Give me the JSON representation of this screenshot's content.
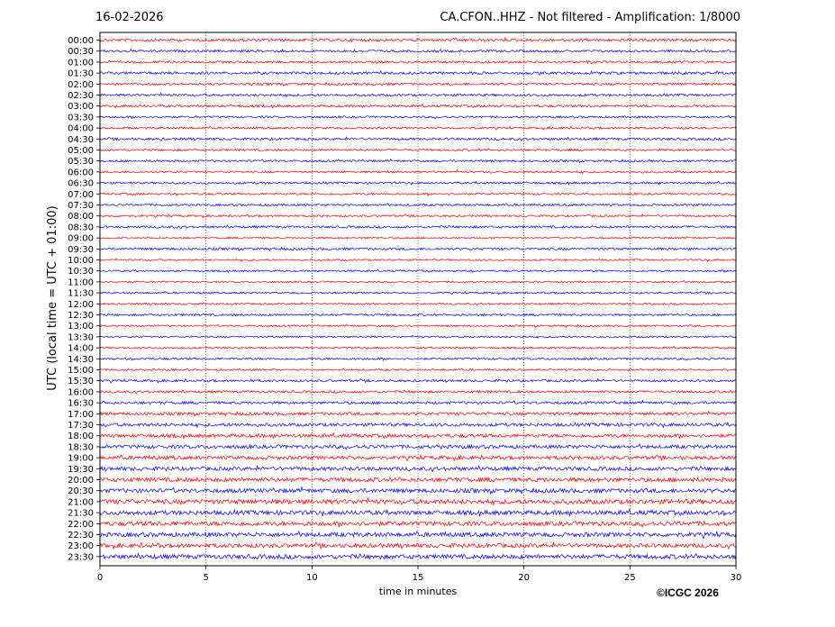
{
  "header": {
    "date": "16-02-2026",
    "station_title": "CA.CFON..HHZ - Not filtered - Amplification: 1/8000"
  },
  "footer": {
    "copyright": "©ICGC 2026"
  },
  "chart_data": {
    "type": "line",
    "title": "CA.CFON..HHZ - Not filtered - Amplification: 1/8000",
    "xlabel": "time in minutes",
    "ylabel": "UTC (local time = UTC + 01:00)",
    "xlim": [
      0,
      30
    ],
    "xticks": [
      0,
      5,
      10,
      15,
      20,
      25,
      30
    ],
    "grid": "vertical dotted lines at each x tick",
    "series_colors": [
      "#ff0000",
      "#0000ff"
    ],
    "rows": [
      "00:00",
      "00:30",
      "01:00",
      "01:30",
      "02:00",
      "02:30",
      "03:00",
      "03:30",
      "04:00",
      "04:30",
      "05:00",
      "05:30",
      "06:00",
      "06:30",
      "07:00",
      "07:30",
      "08:00",
      "08:30",
      "09:00",
      "09:30",
      "10:00",
      "10:30",
      "11:00",
      "11:30",
      "12:00",
      "12:30",
      "13:00",
      "13:30",
      "14:00",
      "14:30",
      "15:00",
      "15:30",
      "16:00",
      "16:30",
      "17:00",
      "17:30",
      "18:00",
      "18:30",
      "19:00",
      "19:30",
      "20:00",
      "20:30",
      "21:00",
      "21:30",
      "22:00",
      "22:30",
      "23:00",
      "23:30"
    ],
    "relative_amplitude": [
      0.45,
      0.4,
      0.4,
      0.45,
      0.4,
      0.4,
      0.4,
      0.35,
      0.35,
      0.4,
      0.35,
      0.35,
      0.35,
      0.35,
      0.35,
      0.35,
      0.35,
      0.4,
      0.3,
      0.4,
      0.3,
      0.3,
      0.3,
      0.3,
      0.3,
      0.35,
      0.3,
      0.3,
      0.3,
      0.35,
      0.3,
      0.4,
      0.4,
      0.45,
      0.5,
      0.55,
      0.6,
      0.6,
      0.6,
      0.65,
      0.7,
      0.7,
      0.8,
      0.75,
      0.75,
      0.75,
      0.7,
      0.75
    ]
  }
}
